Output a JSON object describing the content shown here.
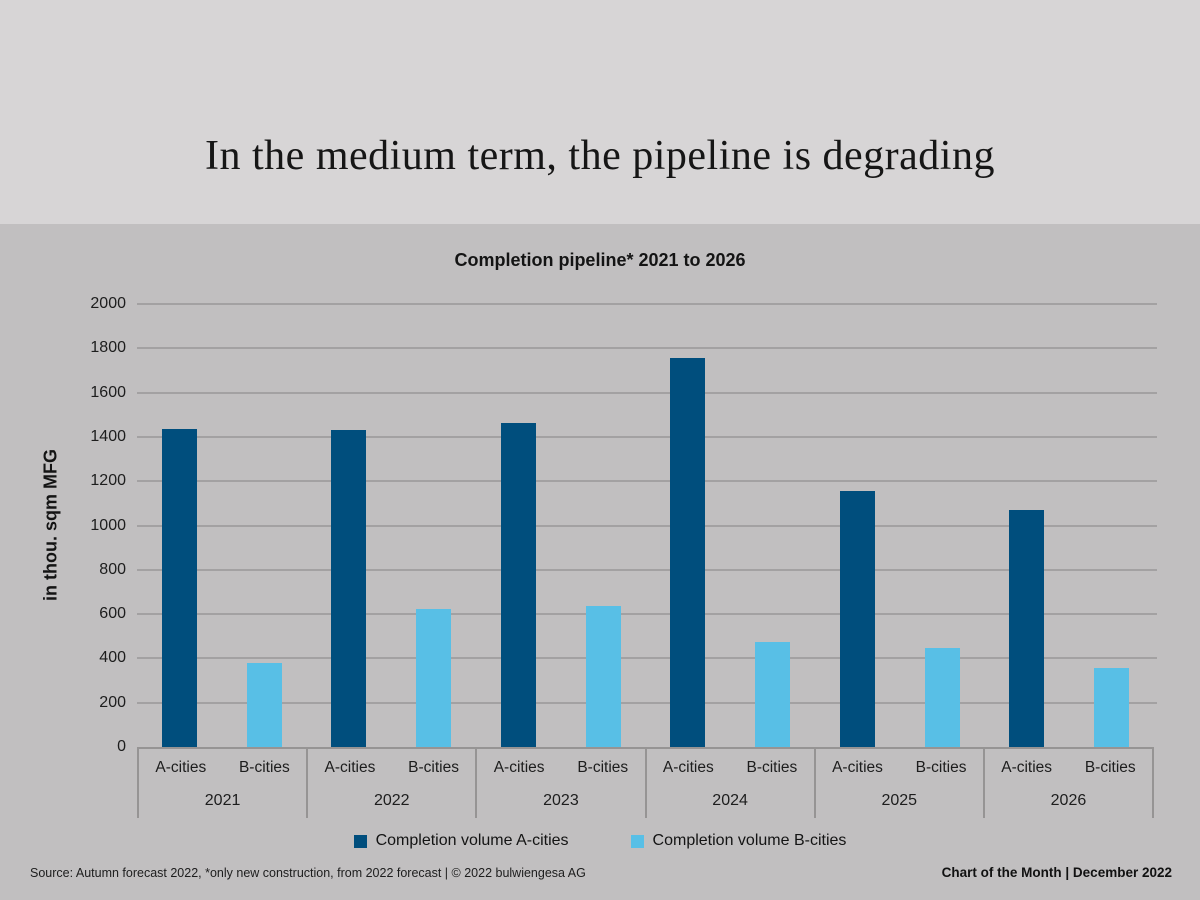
{
  "slide": {
    "title": "In the medium term, the pipeline is degrading",
    "footer_left": "Source: Autumn forecast 2022, *only new construction, from 2022 forecast | © 2022 bulwiengesa AG",
    "footer_right": "Chart of the Month | December 2022"
  },
  "chart_data": {
    "type": "bar",
    "title": "Completion pipeline* 2021 to 2026",
    "xlabel": "",
    "ylabel": "in thou. sqm MFG",
    "ylim": [
      0,
      2000
    ],
    "ytick_step": 200,
    "grid": true,
    "legend_position": "bottom",
    "categories": [
      "2021",
      "2022",
      "2023",
      "2024",
      "2025",
      "2026"
    ],
    "subcategories": [
      "A-cities",
      "B-cities"
    ],
    "series": [
      {
        "name": "Completion volume A-cities",
        "color": "#004e7d",
        "values": [
          1435,
          1430,
          1465,
          1755,
          1155,
          1070
        ]
      },
      {
        "name": "Completion volume B-cities",
        "color": "#58bfe6",
        "values": [
          380,
          625,
          635,
          475,
          445,
          355
        ]
      }
    ]
  }
}
